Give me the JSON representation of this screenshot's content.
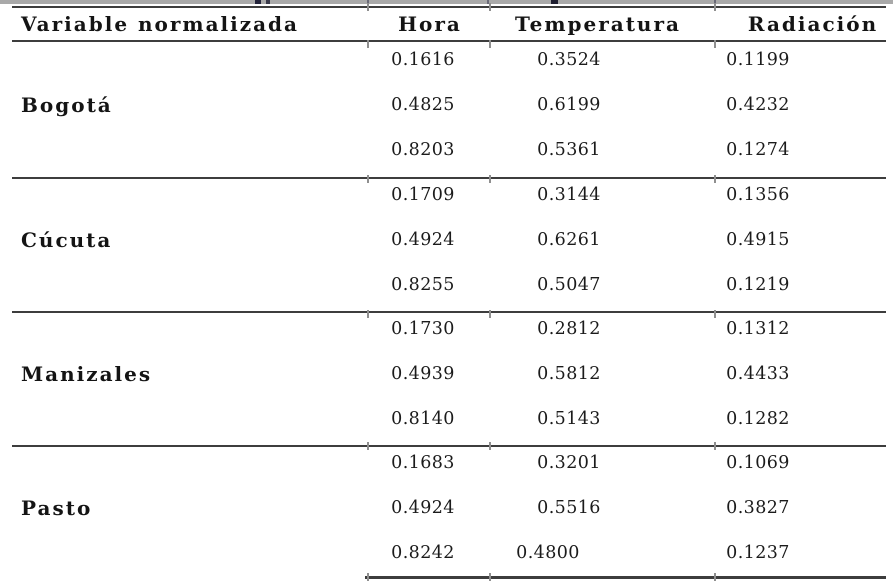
{
  "document": {
    "columns": [
      "Variable normalizada",
      "Hora",
      "Temperatura",
      "Radiación"
    ],
    "groups": [
      {
        "city": "Bogotá",
        "rows": [
          [
            "0.1616",
            "0.3524",
            "0.1199"
          ],
          [
            "0.4825",
            "0.6199",
            "0.4232"
          ],
          [
            "0.8203",
            "0.5361",
            "0.1274"
          ]
        ]
      },
      {
        "city": "Cúcuta",
        "rows": [
          [
            "0.1709",
            "0.3144",
            "0.1356"
          ],
          [
            "0.4924",
            "0.6261",
            "0.4915"
          ],
          [
            "0.8255",
            "0.5047",
            "0.1219"
          ]
        ]
      },
      {
        "city": "Manizales",
        "rows": [
          [
            "0.1730",
            "0.2812",
            "0.1312"
          ],
          [
            "0.4939",
            "0.5812",
            "0.4433"
          ],
          [
            "0.8140",
            "0.5143",
            "0.1282"
          ]
        ]
      },
      {
        "city": "Pasto",
        "rows": [
          [
            "0.1683",
            "0.3201",
            "0.1069"
          ],
          [
            "0.4924",
            "0.5516",
            "0.3827"
          ],
          [
            "0.8242",
            "0.4800",
            "0.1237"
          ]
        ]
      }
    ],
    "colors": {
      "rule": "#3d3d3d",
      "text": "#1b1b1b",
      "remnant_strip": "#a9a9a9"
    }
  }
}
